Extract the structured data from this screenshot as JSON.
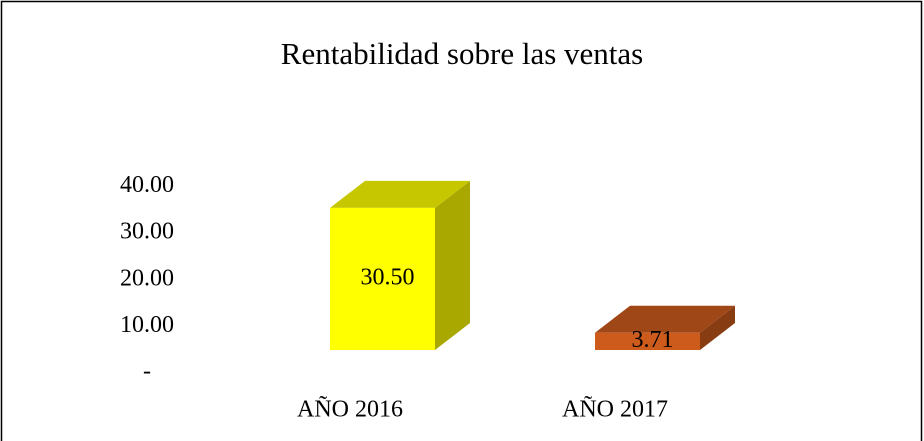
{
  "chart_data": {
    "type": "bar3d",
    "title": "Rentabilidad sobre las ventas",
    "categories": [
      "AÑO 2016",
      "AÑO 2017"
    ],
    "values": [
      30.5,
      3.71
    ],
    "value_labels": [
      "30.50",
      "3.71"
    ],
    "colors": [
      "#ffff00",
      "#cc5b1c"
    ],
    "ylim": [
      0,
      40
    ],
    "yticks": [
      {
        "value": 0,
        "label": "-"
      },
      {
        "value": 10,
        "label": "10.00"
      },
      {
        "value": 20,
        "label": "20.00"
      },
      {
        "value": 30,
        "label": "30.00"
      },
      {
        "value": 40,
        "label": "40.00"
      }
    ]
  }
}
